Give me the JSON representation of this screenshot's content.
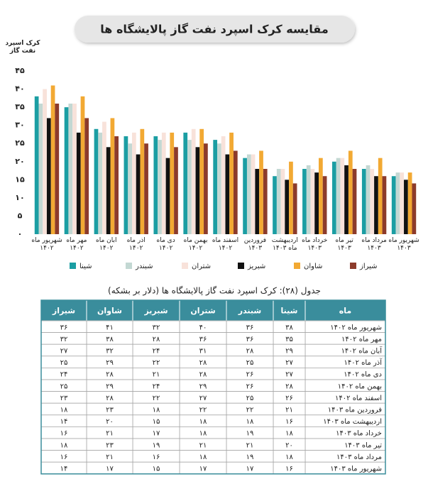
{
  "chart_data": {
    "type": "bar",
    "title": "مقایسه کرک اسپرد نفت گاز پالایشگاه ها",
    "y_label": "کرک اسپرد نفت گاز",
    "categories": [
      "شهریور ماه ۱۴۰۲",
      "مهر ماه ۱۴۰۲",
      "آبان ماه ۱۴۰۲",
      "آذر ماه ۱۴۰۲",
      "دی ماه ۱۴۰۲",
      "بهمن ماه ۱۴۰۲",
      "اسفند ماه ۱۴۰۲",
      "فروردین ۱۴۰۳",
      "اردیبهشت ماه ۱۴۰۳",
      "خرداد ماه ۱۴۰۳",
      "تیر ماه ۱۴۰۳",
      "مرداد ماه ۱۴۰۳",
      "شهریور ماه ۱۴۰۳"
    ],
    "series": [
      {
        "name": "شینا",
        "color": "#1b9ea3",
        "values": [
          38,
          35,
          29,
          27,
          27,
          28,
          26,
          21,
          16,
          18,
          20,
          18,
          16
        ]
      },
      {
        "name": "شبندر",
        "color": "#c3d8d3",
        "values": [
          36,
          36,
          28,
          25,
          26,
          26,
          25,
          22,
          18,
          19,
          21,
          19,
          17
        ]
      },
      {
        "name": "شتران",
        "color": "#f8e2da",
        "values": [
          40,
          36,
          31,
          28,
          28,
          29,
          27,
          22,
          18,
          18,
          21,
          18,
          17
        ]
      },
      {
        "name": "شبریز",
        "color": "#111111",
        "values": [
          32,
          28,
          24,
          22,
          21,
          24,
          22,
          18,
          15,
          17,
          19,
          16,
          15
        ]
      },
      {
        "name": "شاوان",
        "color": "#f2a933",
        "values": [
          41,
          38,
          32,
          29,
          28,
          29,
          28,
          23,
          20,
          21,
          23,
          21,
          17
        ]
      },
      {
        "name": "شیراز",
        "color": "#8c3b2b",
        "values": [
          36,
          32,
          27,
          25,
          24,
          25,
          23,
          18,
          14,
          16,
          18,
          16,
          14
        ]
      }
    ],
    "ylim": [
      0,
      45
    ],
    "yticks": [
      {
        "value": 0,
        "label": "۰"
      },
      {
        "value": 5,
        "label": "۵"
      },
      {
        "value": 10,
        "label": "۱۰"
      },
      {
        "value": 15,
        "label": "۱۵"
      },
      {
        "value": 20,
        "label": "۲۰"
      },
      {
        "value": 25,
        "label": "۲۵"
      },
      {
        "value": 30,
        "label": "۳۰"
      },
      {
        "value": 35,
        "label": "۳۵"
      },
      {
        "value": 40,
        "label": "۴۰"
      },
      {
        "value": 45,
        "label": "۴۵"
      }
    ],
    "grid": false
  },
  "table": {
    "caption": "جدول (۲۸): کرک اسپرد نفت گاز پالایشگاه ها (دلار بر بشکه)",
    "header": [
      "ماه",
      "شینا",
      "شبندر",
      "شتران",
      "شبریز",
      "شاوان",
      "شیراز"
    ],
    "rows": [
      [
        "شهریور ماه ۱۴۰۲",
        "۳۸",
        "۳۶",
        "۴۰",
        "۳۲",
        "۴۱",
        "۳۶"
      ],
      [
        "مهر ماه ۱۴۰۲",
        "۳۵",
        "۳۶",
        "۳۶",
        "۲۸",
        "۳۸",
        "۳۲"
      ],
      [
        "آبان ماه ۱۴۰۲",
        "۲۹",
        "۲۸",
        "۳۱",
        "۲۴",
        "۳۲",
        "۲۷"
      ],
      [
        "آذر ماه ۱۴۰۲",
        "۲۷",
        "۲۵",
        "۲۸",
        "۲۲",
        "۲۹",
        "۲۵"
      ],
      [
        "دی ماه ۱۴۰۲",
        "۲۷",
        "۲۶",
        "۲۸",
        "۲۱",
        "۲۸",
        "۲۴"
      ],
      [
        "بهمن ماه ۱۴۰۲",
        "۲۸",
        "۲۶",
        "۲۹",
        "۲۴",
        "۲۹",
        "۲۵"
      ],
      [
        "اسفند ماه ۱۴۰۲",
        "۲۶",
        "۲۵",
        "۲۷",
        "۲۲",
        "۲۸",
        "۲۳"
      ],
      [
        "فروردین ماه ۱۴۰۳",
        "۲۱",
        "۲۲",
        "۲۲",
        "۱۸",
        "۲۳",
        "۱۸"
      ],
      [
        "اردیبهشت ماه ۱۴۰۳",
        "۱۶",
        "۱۸",
        "۱۸",
        "۱۵",
        "۲۰",
        "۱۴"
      ],
      [
        "خرداد ماه ۱۴۰۳",
        "۱۸",
        "۱۹",
        "۱۸",
        "۱۷",
        "۲۱",
        "۱۶"
      ],
      [
        "تیر ماه ۱۴۰۳",
        "۲۰",
        "۲۱",
        "۲۱",
        "۱۹",
        "۲۳",
        "۱۸"
      ],
      [
        "مرداد ماه ۱۴۰۳",
        "۱۸",
        "۱۹",
        "۱۸",
        "۱۶",
        "۲۱",
        "۱۶"
      ],
      [
        "شهریور ماه ۱۴۰۳",
        "۱۶",
        "۱۷",
        "۱۷",
        "۱۵",
        "۱۷",
        "۱۴"
      ]
    ]
  }
}
